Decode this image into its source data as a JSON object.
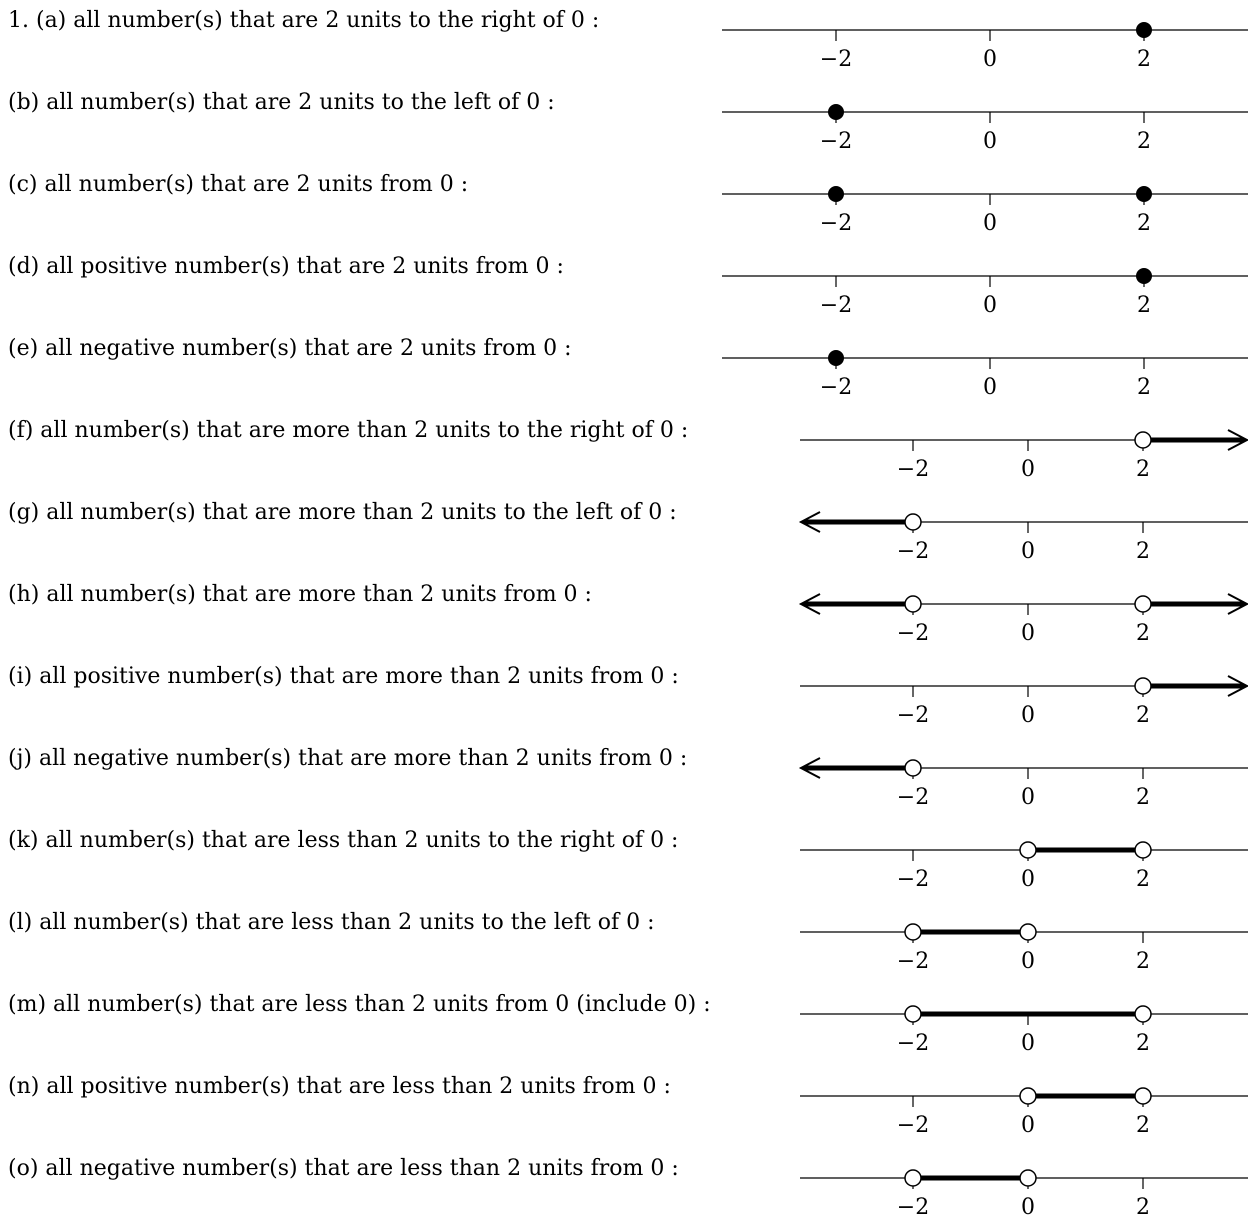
{
  "items": [
    {
      "label": "1.  (a)  all number(s) that are 2 units to the right of 0 :",
      "axis": "A",
      "ticks": [
        "−2",
        "0",
        "2"
      ],
      "points": [
        {
          "x": 2,
          "filled": true
        }
      ],
      "segments": [],
      "rays": []
    },
    {
      "label": "(b)  all number(s) that are 2 units to the left of 0 :",
      "axis": "A",
      "ticks": [
        "−2",
        "0",
        "2"
      ],
      "points": [
        {
          "x": -2,
          "filled": true
        }
      ],
      "segments": [],
      "rays": []
    },
    {
      "label": "(c)  all number(s) that are 2 units from 0 :",
      "axis": "A",
      "ticks": [
        "−2",
        "0",
        "2"
      ],
      "points": [
        {
          "x": -2,
          "filled": true
        },
        {
          "x": 2,
          "filled": true
        }
      ],
      "segments": [],
      "rays": []
    },
    {
      "label": "(d)  all positive number(s) that are 2 units from 0 :",
      "axis": "A",
      "ticks": [
        "−2",
        "0",
        "2"
      ],
      "points": [
        {
          "x": 2,
          "filled": true
        }
      ],
      "segments": [],
      "rays": []
    },
    {
      "label": "(e)  all negative number(s) that are 2 units from 0 :",
      "axis": "A",
      "ticks": [
        "−2",
        "0",
        "2"
      ],
      "points": [
        {
          "x": -2,
          "filled": true
        }
      ],
      "segments": [],
      "rays": []
    },
    {
      "label": "(f)  all number(s) that are more than 2 units to the right of 0 :",
      "axis": "B",
      "ticks": [
        "−2",
        "0",
        "2"
      ],
      "points": [
        {
          "x": 2,
          "filled": false
        }
      ],
      "segments": [],
      "rays": [
        {
          "from": 2,
          "dir": "right"
        }
      ]
    },
    {
      "label": "(g)  all number(s) that are more than 2 units to the left of 0 :",
      "axis": "B",
      "ticks": [
        "−2",
        "0",
        "2"
      ],
      "points": [
        {
          "x": -2,
          "filled": false
        }
      ],
      "segments": [],
      "rays": [
        {
          "from": -2,
          "dir": "left"
        }
      ]
    },
    {
      "label": "(h)  all number(s) that are more than 2 units from 0 :",
      "axis": "B",
      "ticks": [
        "−2",
        "0",
        "2"
      ],
      "points": [
        {
          "x": -2,
          "filled": false
        },
        {
          "x": 2,
          "filled": false
        }
      ],
      "segments": [],
      "rays": [
        {
          "from": -2,
          "dir": "left"
        },
        {
          "from": 2,
          "dir": "right"
        }
      ]
    },
    {
      "label": "(i)  all positive number(s) that are more than 2 units from 0 :",
      "axis": "B",
      "ticks": [
        "−2",
        "0",
        "2"
      ],
      "points": [
        {
          "x": 2,
          "filled": false
        }
      ],
      "segments": [],
      "rays": [
        {
          "from": 2,
          "dir": "right"
        }
      ]
    },
    {
      "label": "(j)  all negative number(s) that are more than 2 units from 0 :",
      "axis": "B",
      "ticks": [
        "−2",
        "0",
        "2"
      ],
      "points": [
        {
          "x": -2,
          "filled": false
        }
      ],
      "segments": [],
      "rays": [
        {
          "from": -2,
          "dir": "left"
        }
      ]
    },
    {
      "label": "(k)  all number(s) that are less than 2 units to the right of 0 :",
      "axis": "B",
      "ticks": [
        "−2",
        "0",
        "2"
      ],
      "points": [
        {
          "x": 0,
          "filled": false
        },
        {
          "x": 2,
          "filled": false
        }
      ],
      "segments": [
        [
          0,
          2
        ]
      ],
      "rays": []
    },
    {
      "label": "(l)  all number(s) that are less than 2 units to the left of 0 :",
      "axis": "B",
      "ticks": [
        "−2",
        "0",
        "2"
      ],
      "points": [
        {
          "x": -2,
          "filled": false
        },
        {
          "x": 0,
          "filled": false
        }
      ],
      "segments": [
        [
          -2,
          0
        ]
      ],
      "rays": []
    },
    {
      "label": "(m)  all number(s) that are less than 2 units from 0 (include 0) :",
      "axis": "B",
      "ticks": [
        "−2",
        "0",
        "2"
      ],
      "points": [
        {
          "x": -2,
          "filled": false
        },
        {
          "x": 2,
          "filled": false
        }
      ],
      "segments": [
        [
          -2,
          2
        ]
      ],
      "rays": []
    },
    {
      "label": "(n)  all positive number(s) that are less than 2 units from 0 :",
      "axis": "B",
      "ticks": [
        "−2",
        "0",
        "2"
      ],
      "points": [
        {
          "x": 0,
          "filled": false
        },
        {
          "x": 2,
          "filled": false
        }
      ],
      "segments": [
        [
          0,
          2
        ]
      ],
      "rays": []
    },
    {
      "label": "(o)  all negative number(s) that are less than 2 units from 0 :",
      "axis": "B",
      "ticks": [
        "−2",
        "0",
        "2"
      ],
      "points": [
        {
          "x": -2,
          "filled": false
        },
        {
          "x": 0,
          "filled": false
        }
      ],
      "segments": [
        [
          -2,
          0
        ]
      ],
      "rays": []
    }
  ]
}
